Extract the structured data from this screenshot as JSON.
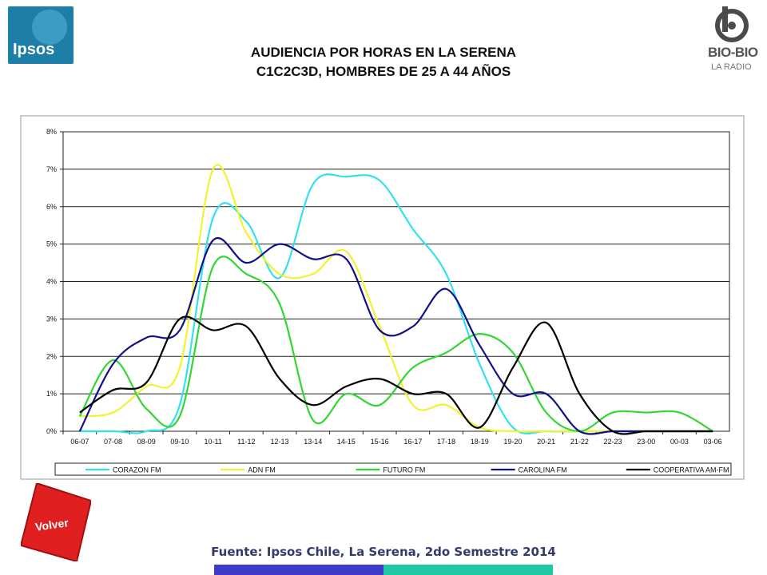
{
  "header": {
    "title_line1": "AUDIENCIA POR HORAS EN LA SERENA",
    "title_line2": "C1C2C3D, HOMBRES DE 25 A 44 AÑOS",
    "logo_left": "Ipsos",
    "logo_right_name": "BIO-BIO",
    "logo_right_sub": "LA RADIO"
  },
  "volver_button": {
    "label": "Volver",
    "color": "#e02020"
  },
  "footer": {
    "source": "Fuente: Ipsos Chile, La Serena, 2do Semestre 2014",
    "bar_colors": [
      "#3c3cc8",
      "#1ec9a4"
    ]
  },
  "chart_data": {
    "type": "line",
    "categories": [
      "06-07",
      "07-08",
      "08-09",
      "09-10",
      "10-11",
      "11-12",
      "12-13",
      "13-14",
      "14-15",
      "15-16",
      "16-17",
      "17-18",
      "18-19",
      "19-20",
      "20-21",
      "21-22",
      "22-23",
      "23-00",
      "00-03",
      "03-06"
    ],
    "y_ticks": [
      "0%",
      "1%",
      "2%",
      "3%",
      "4%",
      "5%",
      "6%",
      "7%",
      "8%"
    ],
    "ylim": [
      0,
      8
    ],
    "y_unit": "%",
    "grid": true,
    "legend_position": "bottom",
    "series": [
      {
        "name": "CORAZON FM",
        "color": "#33e0f0",
        "values": [
          0.0,
          0.0,
          0.0,
          0.7,
          5.7,
          5.6,
          4.1,
          6.6,
          6.8,
          6.7,
          5.4,
          4.2,
          1.8,
          0.1,
          0.0,
          0.0,
          0.0,
          0.0,
          0.0,
          0.0
        ]
      },
      {
        "name": "ADN FM",
        "color": "#f2f230",
        "values": [
          0.4,
          0.5,
          1.2,
          1.7,
          7.0,
          5.3,
          4.2,
          4.2,
          4.8,
          2.8,
          0.7,
          0.7,
          0.1,
          0.0,
          0.0,
          0.0,
          0.0,
          0.0,
          0.0,
          0.0
        ]
      },
      {
        "name": "FUTURO FM",
        "color": "#33d633",
        "values": [
          0.4,
          1.9,
          0.6,
          0.4,
          4.4,
          4.2,
          3.4,
          0.3,
          1.0,
          0.7,
          1.7,
          2.1,
          2.6,
          2.1,
          0.5,
          0.0,
          0.5,
          0.5,
          0.5,
          0.0
        ]
      },
      {
        "name": "CAROLINA FM",
        "color": "#10108c",
        "values": [
          0.0,
          1.8,
          2.5,
          2.7,
          5.1,
          4.5,
          5.0,
          4.6,
          4.6,
          2.7,
          2.8,
          3.8,
          2.3,
          1.0,
          1.0,
          0.0,
          0.0,
          0.0,
          0.0,
          0.0
        ]
      },
      {
        "name": "COOPERATIVA AM-FM",
        "color": "#000000",
        "values": [
          0.5,
          1.1,
          1.3,
          3.0,
          2.7,
          2.8,
          1.4,
          0.7,
          1.2,
          1.4,
          1.0,
          1.0,
          0.1,
          1.7,
          2.9,
          1.0,
          0.0,
          0.0,
          0.0,
          0.0
        ]
      }
    ]
  }
}
